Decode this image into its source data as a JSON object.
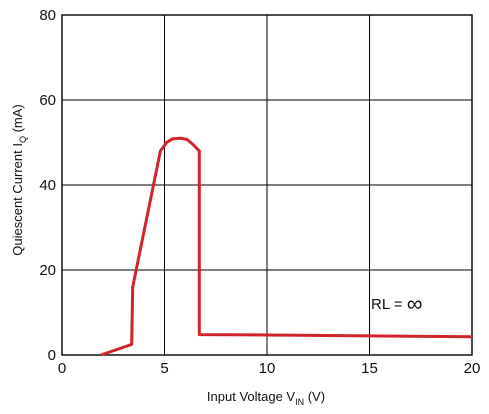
{
  "chart_data": {
    "type": "line",
    "xlabel": {
      "main": "Input Voltage V",
      "sub": "IN",
      "unit": "(V)"
    },
    "ylabel": {
      "main": "Quiescent Current I",
      "sub": "Q",
      "unit": "(mA)"
    },
    "xlim": [
      0,
      20
    ],
    "ylim": [
      0,
      80
    ],
    "xticks": [
      0,
      5,
      10,
      15,
      20
    ],
    "yticks": [
      0,
      20,
      40,
      60,
      80
    ],
    "grid": true,
    "annotation": {
      "text": "RL = ",
      "symbol": "∞"
    },
    "series": [
      {
        "color": "#d2232a",
        "x": [
          1.9,
          3.4,
          3.45,
          4.8,
          5.1,
          5.4,
          5.8,
          6.1,
          6.4,
          6.7,
          6.7,
          10,
          15,
          20
        ],
        "y": [
          0,
          2.5,
          16,
          48,
          50,
          50.9,
          51,
          50.7,
          49.5,
          48,
          4.8,
          4.7,
          4.5,
          4.3
        ]
      }
    ]
  }
}
